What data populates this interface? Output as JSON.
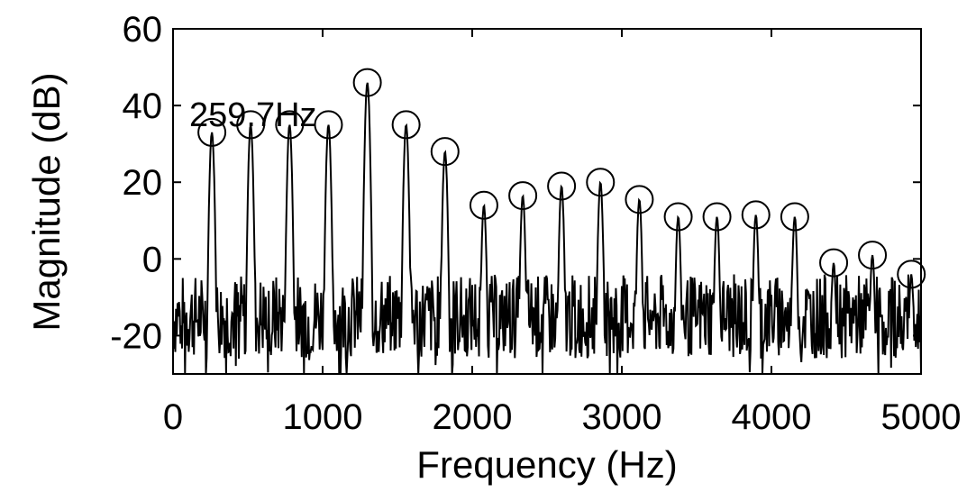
{
  "chart_data": {
    "type": "line",
    "title": "",
    "xlabel": "Frequency (Hz)",
    "ylabel": "Magnitude (dB)",
    "xlim": [
      0,
      5000
    ],
    "ylim": [
      -30,
      60
    ],
    "xticks": [
      0,
      1000,
      2000,
      3000,
      4000,
      5000
    ],
    "yticks": [
      -20,
      0,
      20,
      40,
      60
    ],
    "grid": false,
    "annotation": "259.7Hz",
    "series": [
      {
        "marker": "circle",
        "peaks": [
          {
            "x": 259.7,
            "y": 33
          },
          {
            "x": 519,
            "y": 35
          },
          {
            "x": 779,
            "y": 35
          },
          {
            "x": 1039,
            "y": 35
          },
          {
            "x": 1299,
            "y": 46
          },
          {
            "x": 1558,
            "y": 35
          },
          {
            "x": 1818,
            "y": 28
          },
          {
            "x": 2078,
            "y": 14
          },
          {
            "x": 2338,
            "y": 16.5
          },
          {
            "x": 2597,
            "y": 19
          },
          {
            "x": 2857,
            "y": 20
          },
          {
            "x": 3117,
            "y": 15.5
          },
          {
            "x": 3377,
            "y": 11
          },
          {
            "x": 3636,
            "y": 11
          },
          {
            "x": 3896,
            "y": 11.5
          },
          {
            "x": 4156,
            "y": 11
          },
          {
            "x": 4416,
            "y": -1
          },
          {
            "x": 4675,
            "y": 1
          },
          {
            "x": 4935,
            "y": -4
          }
        ],
        "noise_floor_db": -15
      }
    ]
  }
}
